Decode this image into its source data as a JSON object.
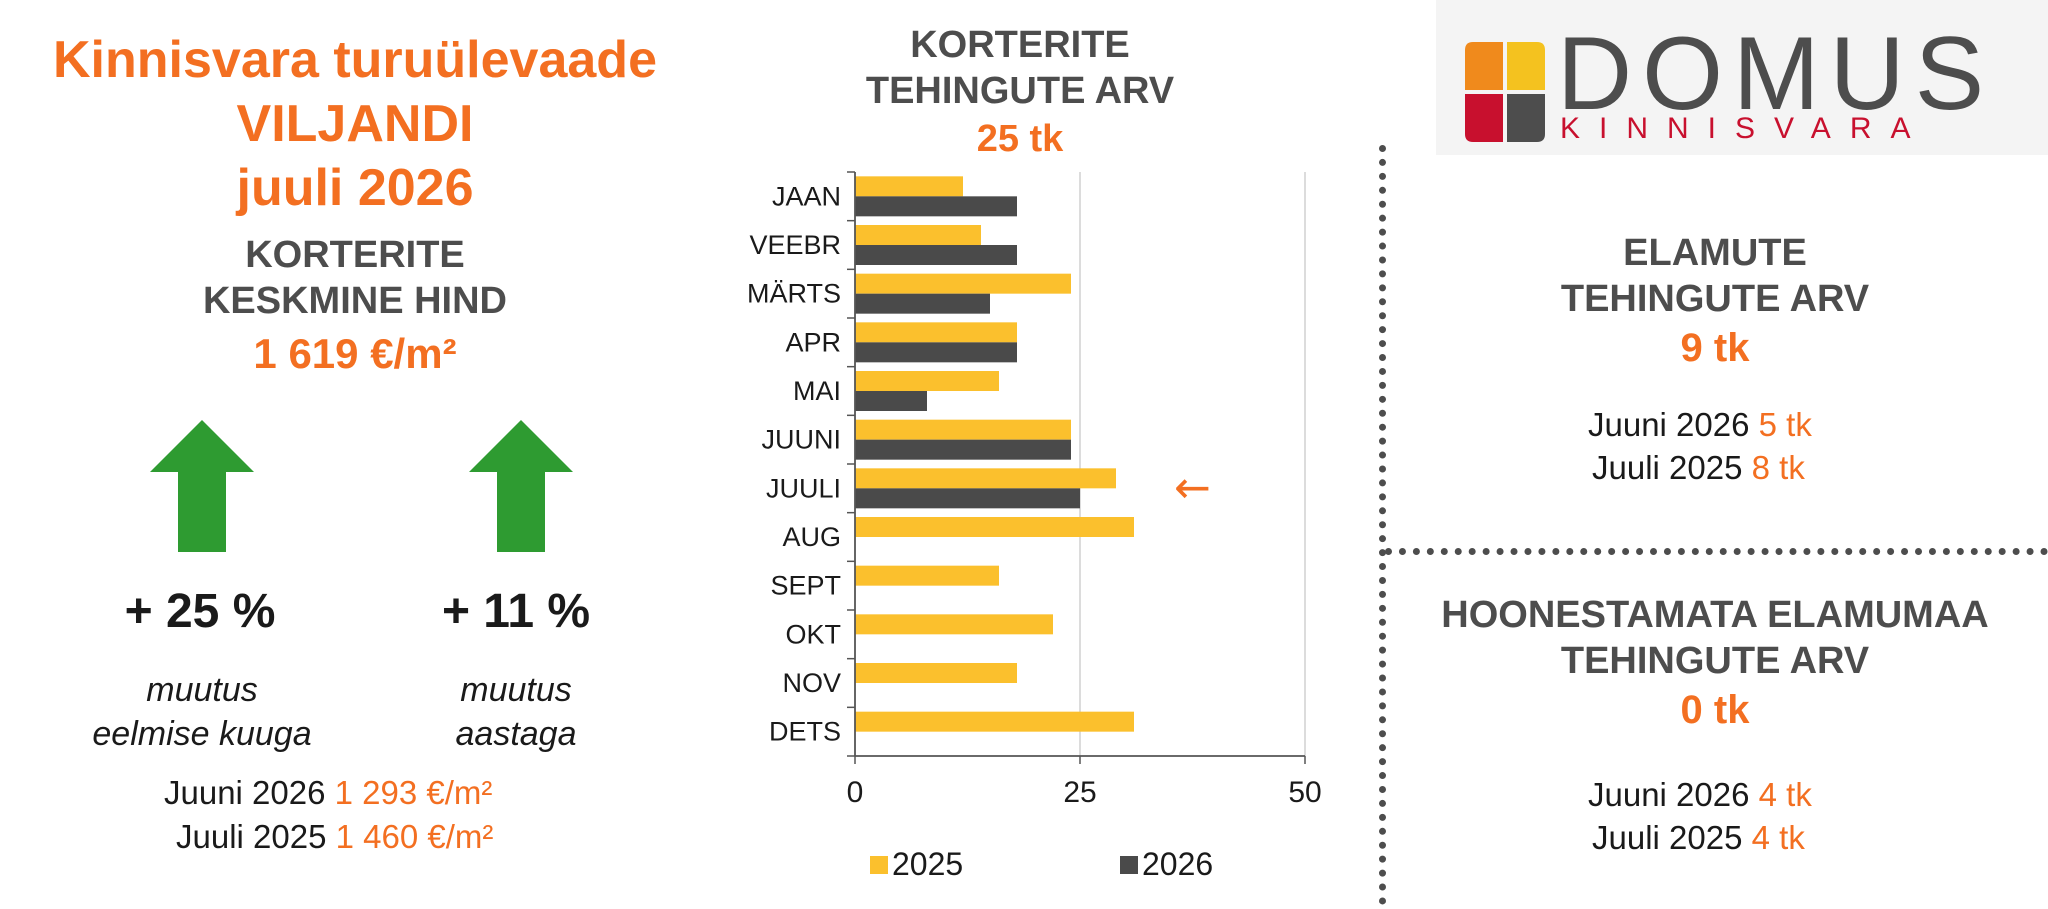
{
  "header": {
    "title_line1": "Kinnisvara turuülevaade",
    "title_line2": "VILJANDI",
    "title_line3": "juuli 2026"
  },
  "avg_price": {
    "label_line1": "KORTERITE",
    "label_line2": "KESKMINE HIND",
    "value": "1 619 €/m²",
    "arrow_color": "#2e9b31",
    "month_change": "+ 25 %",
    "month_desc_line1": "muutus",
    "month_desc_line2": "eelmise kuuga",
    "year_change": "+ 11 %",
    "year_desc_line1": "muutus",
    "year_desc_line2": "aastaga",
    "cmp1_label": "Juuni 2026",
    "cmp1_value": "1 293 €/m²",
    "cmp2_label": "Juuli 2025",
    "cmp2_value": "1 460 €/m²"
  },
  "apartments": {
    "title_line1": "KORTERITE",
    "title_line2": "TEHINGUTE ARV",
    "total": "25 tk"
  },
  "chart_data": {
    "type": "bar",
    "orientation": "horizontal",
    "categories": [
      "JAAN",
      "VEEBR",
      "MÄRTS",
      "APR",
      "MAI",
      "JUUNI",
      "JUULI",
      "AUG",
      "SEPT",
      "OKT",
      "NOV",
      "DETS"
    ],
    "series": [
      {
        "name": "2025",
        "color": "#fbc02d",
        "values": [
          12,
          14,
          24,
          18,
          16,
          24,
          29,
          31,
          16,
          22,
          18,
          31
        ]
      },
      {
        "name": "2026",
        "color": "#4a4a4a",
        "values": [
          18,
          18,
          15,
          18,
          8,
          24,
          25,
          null,
          null,
          null,
          null,
          null
        ]
      }
    ],
    "xlim": [
      0,
      50
    ],
    "xticks": [
      "0",
      "25",
      "50"
    ],
    "grid": true,
    "legend_position": "bottom",
    "highlight_category": "JUULI",
    "highlight_marker": "←",
    "highlight_color": "#f36f21"
  },
  "logo": {
    "name": "DOMUS",
    "sub": "KINNISVARA",
    "colors": [
      "#f08a1c",
      "#f4c21f",
      "#c8102e",
      "#4d4d4d"
    ]
  },
  "houses": {
    "title_line1": "ELAMUTE",
    "title_line2": "TEHINGUTE ARV",
    "total": "9 tk",
    "cmp1_label": "Juuni 2026",
    "cmp1_value": "5 tk",
    "cmp2_label": "Juuli 2025",
    "cmp2_value": "8 tk"
  },
  "land": {
    "title_line1": "HOONESTAMATA ELAMUMAA",
    "title_line2": "TEHINGUTE ARV",
    "total": "0 tk",
    "cmp1_label": "Juuni 2026",
    "cmp1_value": "4 tk",
    "cmp2_label": "Juuli 2025",
    "cmp2_value": "4 tk"
  }
}
